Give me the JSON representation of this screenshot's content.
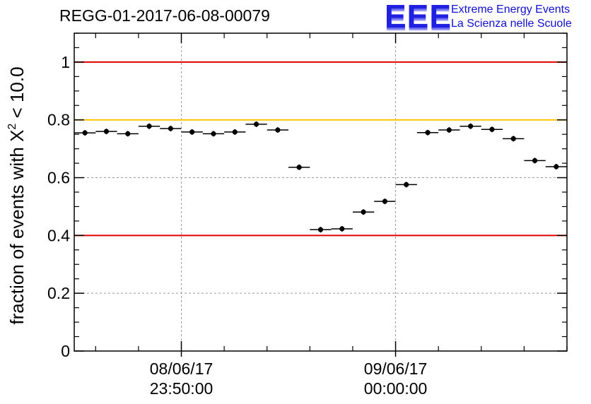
{
  "title": "REGG-01-2017-06-08-00079",
  "logo": {
    "letters": "EEE",
    "line1": "Extreme Energy Events",
    "line2": "La Scienza nelle Scuole"
  },
  "colors": {
    "red_line": "#e00000",
    "yellow_line": "#ffc400",
    "grid": "#9a9a9a",
    "marker": "#000000",
    "logo": "#2020e0"
  },
  "chart_data": {
    "type": "scatter",
    "title": "REGG-01-2017-06-08-00079",
    "ylabel_prefix": "fraction of events with ",
    "ylabel_symbol": "X",
    "ylabel_sup": "2",
    "ylabel_suffix": " < 10.0",
    "ylim": [
      0,
      1.1
    ],
    "yticks": [
      0,
      0.2,
      0.4,
      0.6,
      0.8,
      1
    ],
    "ytick_labels": [
      "0",
      "0.2",
      "0.4",
      "0.6",
      "0.8",
      "1"
    ],
    "xlim": [
      "2017-06-08 23:45:00",
      "2017-06-09 00:08:00"
    ],
    "xticks": [
      {
        "x": "2017-06-08 23:50:00",
        "date": "08/06/17",
        "time": "23:50:00"
      },
      {
        "x": "2017-06-09 00:00:00",
        "date": "09/06/17",
        "time": "00:00:00"
      }
    ],
    "grid": true,
    "reference_lines": [
      {
        "y": 1.0,
        "color": "#e00000"
      },
      {
        "y": 0.8,
        "color": "#ffc400"
      },
      {
        "y": 0.4,
        "color": "#e00000"
      }
    ],
    "bin_width_minutes": 1,
    "points": [
      {
        "x": "2017-06-08 23:45:30",
        "y": 0.755
      },
      {
        "x": "2017-06-08 23:46:30",
        "y": 0.76
      },
      {
        "x": "2017-06-08 23:47:30",
        "y": 0.752
      },
      {
        "x": "2017-06-08 23:48:30",
        "y": 0.778
      },
      {
        "x": "2017-06-08 23:49:30",
        "y": 0.77
      },
      {
        "x": "2017-06-08 23:50:30",
        "y": 0.758
      },
      {
        "x": "2017-06-08 23:51:30",
        "y": 0.752
      },
      {
        "x": "2017-06-08 23:52:30",
        "y": 0.758
      },
      {
        "x": "2017-06-08 23:53:30",
        "y": 0.785
      },
      {
        "x": "2017-06-08 23:54:30",
        "y": 0.765
      },
      {
        "x": "2017-06-08 23:55:30",
        "y": 0.636
      },
      {
        "x": "2017-06-08 23:56:30",
        "y": 0.42
      },
      {
        "x": "2017-06-08 23:57:30",
        "y": 0.423
      },
      {
        "x": "2017-06-08 23:58:30",
        "y": 0.481
      },
      {
        "x": "2017-06-08 23:59:30",
        "y": 0.518
      },
      {
        "x": "2017-06-09 00:00:30",
        "y": 0.576
      },
      {
        "x": "2017-06-09 00:01:30",
        "y": 0.756
      },
      {
        "x": "2017-06-09 00:02:30",
        "y": 0.765
      },
      {
        "x": "2017-06-09 00:03:30",
        "y": 0.778
      },
      {
        "x": "2017-06-09 00:04:30",
        "y": 0.767
      },
      {
        "x": "2017-06-09 00:05:30",
        "y": 0.735
      },
      {
        "x": "2017-06-09 00:06:30",
        "y": 0.659
      },
      {
        "x": "2017-06-09 00:07:30",
        "y": 0.638
      }
    ]
  }
}
